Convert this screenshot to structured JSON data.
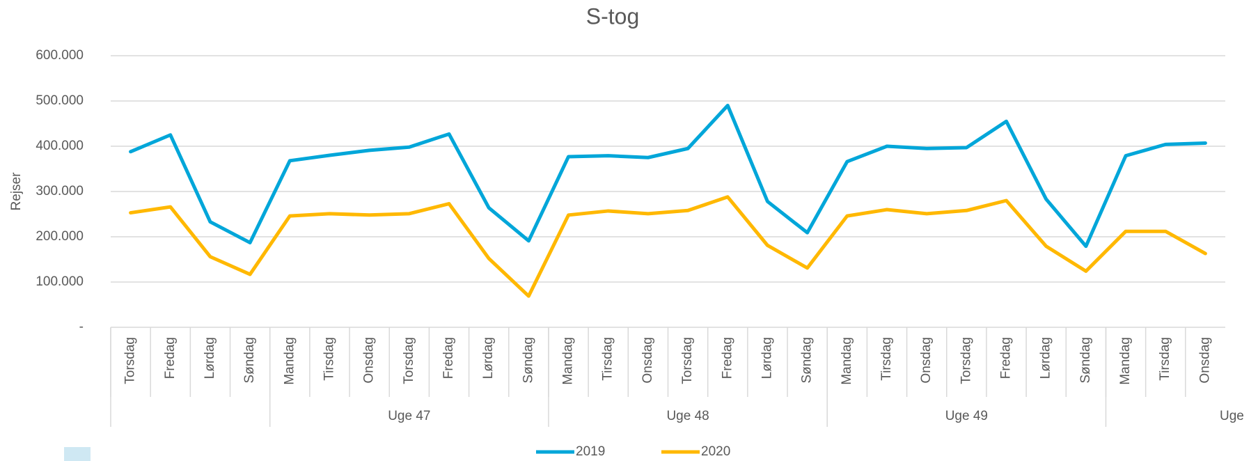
{
  "chart_data": {
    "type": "line",
    "title": "S-tog",
    "y_label": "Rejser",
    "categories": [
      "Torsdag",
      "Fredag",
      "Lørdag",
      "Søndag",
      "Mandag",
      "Tirsdag",
      "Onsdag",
      "Torsdag",
      "Fredag",
      "Lørdag",
      "Søndag",
      "Mandag",
      "Tirsdag",
      "Onsdag",
      "Torsdag",
      "Fredag",
      "Lørdag",
      "Søndag",
      "Mandag",
      "Tirsdag",
      "Onsdag",
      "Torsdag",
      "Fredag",
      "Lørdag",
      "Søndag",
      "Mandag",
      "Tirsdag",
      "Onsdag"
    ],
    "groups": [
      {
        "label": null,
        "size": 4
      },
      {
        "label": "Uge 47",
        "size": 7
      },
      {
        "label": "Uge 48",
        "size": 7
      },
      {
        "label": "Uge 49",
        "size": 7
      },
      {
        "label": "Uge",
        "size": 3
      }
    ],
    "series": [
      {
        "name": "2019",
        "color": "#00a6d9",
        "values": [
          388000,
          425000,
          233000,
          187000,
          368000,
          380000,
          391000,
          398000,
          427000,
          264000,
          191000,
          377000,
          379000,
          375000,
          395000,
          490000,
          278000,
          209000,
          366000,
          400000,
          395000,
          397000,
          455000,
          283000,
          179000,
          379000,
          404000,
          407000
        ]
      },
      {
        "name": "2020",
        "color": "#ffb800",
        "values": [
          253000,
          266000,
          156000,
          117000,
          246000,
          251000,
          248000,
          251000,
          273000,
          152000,
          69000,
          248000,
          257000,
          251000,
          258000,
          288000,
          181000,
          131000,
          246000,
          260000,
          251000,
          258000,
          280000,
          179000,
          124000,
          212000,
          212000,
          163000
        ]
      }
    ],
    "ylim": [
      0,
      600000
    ],
    "yticks": [
      {
        "value": 0,
        "label": "-"
      },
      {
        "value": 100000,
        "label": "100.000"
      },
      {
        "value": 200000,
        "label": "200.000"
      },
      {
        "value": 300000,
        "label": "300.000"
      },
      {
        "value": 400000,
        "label": "400.000"
      },
      {
        "value": 500000,
        "label": "500.000"
      },
      {
        "value": 600000,
        "label": "600.000"
      }
    ],
    "grid": true,
    "legend": "bottom"
  }
}
